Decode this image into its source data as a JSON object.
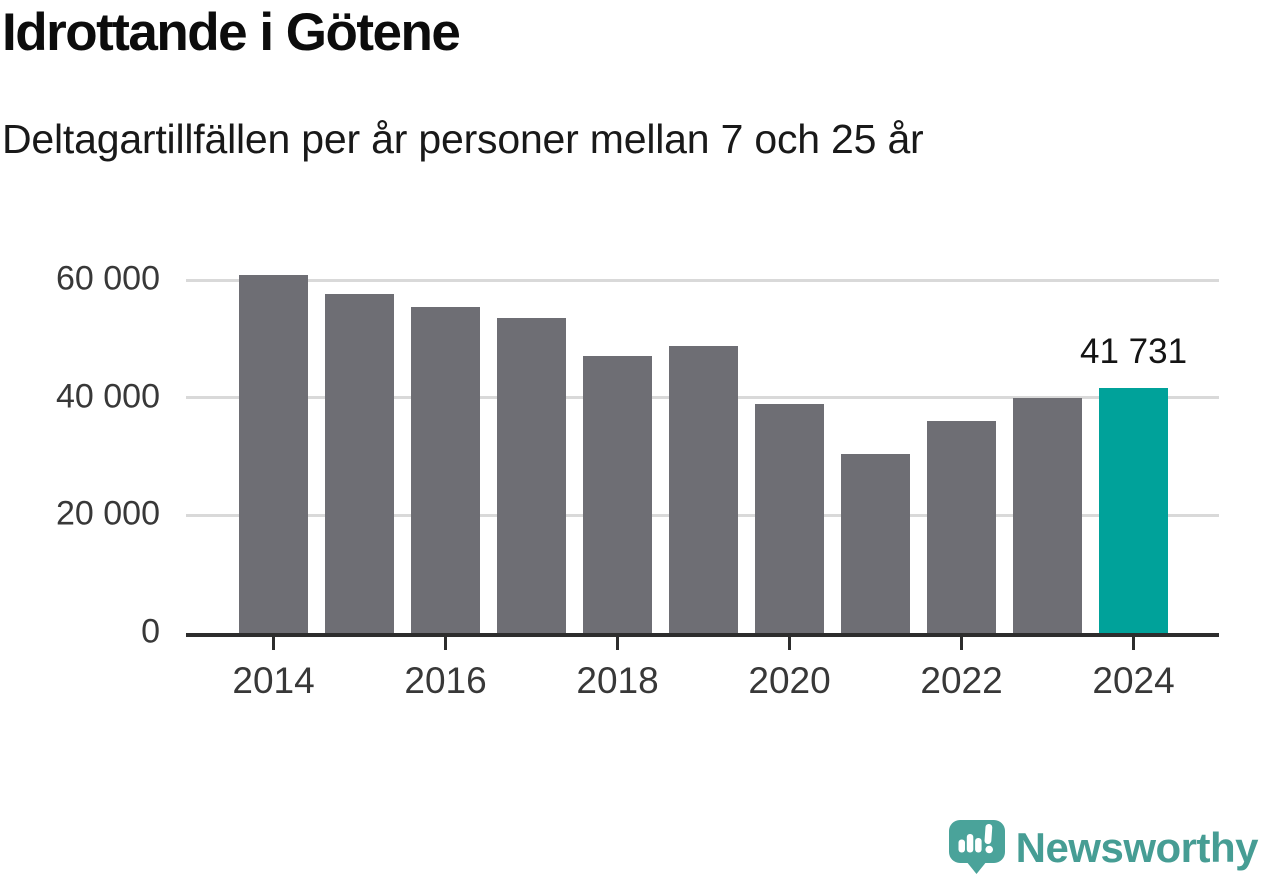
{
  "header": {
    "title": "Idrottande i Götene",
    "subtitle": "Deltagartillfällen per år personer mellan 7 och 25 år"
  },
  "chart_data": {
    "type": "bar",
    "title": "Idrottande i Götene",
    "subtitle": "Deltagartillfällen per år personer mellan 7 och 25 år",
    "categories": [
      "2014",
      "2015",
      "2016",
      "2017",
      "2018",
      "2019",
      "2020",
      "2021",
      "2022",
      "2023",
      "2024"
    ],
    "values": [
      60900,
      57600,
      55400,
      53500,
      47100,
      48800,
      38900,
      30400,
      36000,
      39900,
      41731
    ],
    "highlight": {
      "index": 10,
      "label": "41 731",
      "color": "#00a29a"
    },
    "bar_color": "#6e6e74",
    "ylim": [
      0,
      66800
    ],
    "yticks": [
      {
        "value": 0,
        "label": "0"
      },
      {
        "value": 20000,
        "label": "20 000"
      },
      {
        "value": 40000,
        "label": "40 000"
      },
      {
        "value": 60000,
        "label": "60 000"
      }
    ],
    "xticks": [
      {
        "index": 0,
        "label": "2014"
      },
      {
        "index": 2,
        "label": "2016"
      },
      {
        "index": 4,
        "label": "2018"
      },
      {
        "index": 6,
        "label": "2020"
      },
      {
        "index": 8,
        "label": "2022"
      },
      {
        "index": 10,
        "label": "2024"
      }
    ],
    "grid": "horizontal",
    "grid_color": "#d9d9d9",
    "axis_color": "#2d2d2d",
    "tick_label_color": "#383838"
  },
  "footer": {
    "brand": "Newsworthy",
    "brand_color": "#469d94",
    "icon": {
      "name": "newsworthy-speech-bubble-chart-icon",
      "color": "#4aa39a"
    }
  }
}
